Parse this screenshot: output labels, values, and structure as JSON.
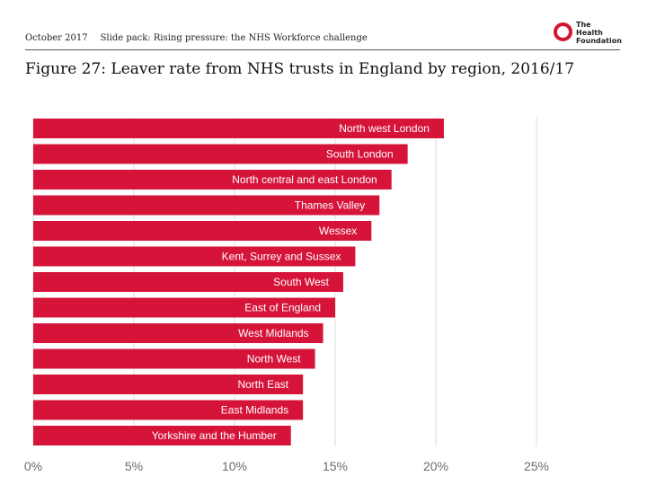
{
  "header": {
    "date": "October 2017",
    "slide_pack": "Slide pack: Rising pressure: the NHS Workforce challenge"
  },
  "logo": {
    "line1": "The",
    "line2": "Health",
    "line3": "Foundation"
  },
  "figure_title": "Figure 27: Leaver rate from NHS trusts in England by region, 2016/17",
  "colors": {
    "bar": "#d6143a",
    "logo": "#d6142f",
    "gridline": "#dcdcdc",
    "tick": "#6b6b6b"
  },
  "chart_data": {
    "type": "bar",
    "orientation": "horizontal",
    "title": "Figure 27: Leaver rate from NHS trusts in England by region, 2016/17",
    "categories": [
      "North west London",
      "South London",
      "North central and east London",
      "Thames Valley",
      "Wessex",
      "Kent, Surrey and Sussex",
      "South West",
      "East of England",
      "West Midlands",
      "North West",
      "North East",
      "East Midlands",
      "Yorkshire and the Humber"
    ],
    "values": [
      20.4,
      18.6,
      17.8,
      17.2,
      16.8,
      16.0,
      15.4,
      15.0,
      14.4,
      14.0,
      13.4,
      13.4,
      12.8
    ],
    "unit": "%",
    "xlim": [
      0,
      25
    ],
    "xticks": [
      0,
      5,
      10,
      15,
      20,
      25
    ],
    "xtick_labels": [
      "0%",
      "5%",
      "10%",
      "15%",
      "20%",
      "25%"
    ],
    "xlabel": "",
    "ylabel": "",
    "grid": true,
    "legend": "none"
  }
}
